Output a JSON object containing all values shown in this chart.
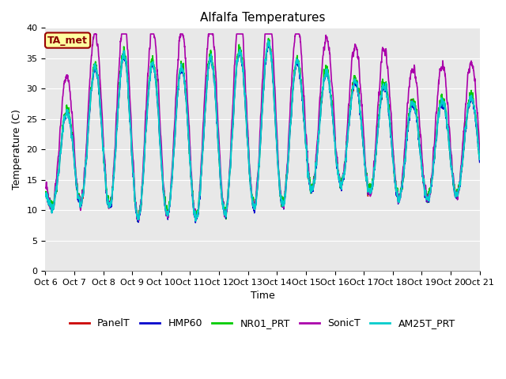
{
  "title": "Alfalfa Temperatures",
  "xlabel": "Time",
  "ylabel": "Temperature (C)",
  "ylim": [
    0,
    40
  ],
  "yticks": [
    0,
    5,
    10,
    15,
    20,
    25,
    30,
    35,
    40
  ],
  "annotation_text": "TA_met",
  "annotation_bg": "#FFFFA0",
  "annotation_border": "#990000",
  "series": {
    "PanelT": {
      "color": "#CC0000",
      "lw": 1.0,
      "zorder": 3
    },
    "HMP60": {
      "color": "#0000CC",
      "lw": 1.0,
      "zorder": 4
    },
    "NR01_PRT": {
      "color": "#00CC00",
      "lw": 1.2,
      "zorder": 2
    },
    "SonicT": {
      "color": "#AA00AA",
      "lw": 1.2,
      "zorder": 5
    },
    "AM25T_PRT": {
      "color": "#00CCCC",
      "lw": 1.5,
      "zorder": 6
    }
  },
  "x_tick_labels": [
    "Oct 6",
    "Oct 7",
    "Oct 8",
    "Oct 9",
    "Oct 10",
    "Oct 11",
    "Oct 12",
    "Oct 13",
    "Oct 14",
    "Oct 15",
    "Oct 16",
    "Oct 17",
    "Oct 18",
    "Oct 19",
    "Oct 20",
    "Oct 21"
  ],
  "num_days": 15,
  "pts_per_day": 144,
  "day_mins": [
    10.5,
    11.0,
    11.0,
    8.5,
    9.5,
    8.5,
    9.0,
    10.5,
    10.5,
    13.0,
    14.5,
    13.0,
    12.0,
    11.5,
    12.5
  ],
  "day_maxes": [
    16.0,
    30.0,
    35.0,
    35.5,
    33.5,
    33.5,
    35.5,
    36.5,
    37.5,
    33.0,
    32.5,
    30.5,
    30.5,
    26.5,
    28.5
  ],
  "bg_color": "#E8E8E8",
  "fig_bg": "#FFFFFF",
  "title_fontsize": 11,
  "axis_fontsize": 9,
  "tick_fontsize": 8,
  "legend_fontsize": 9
}
